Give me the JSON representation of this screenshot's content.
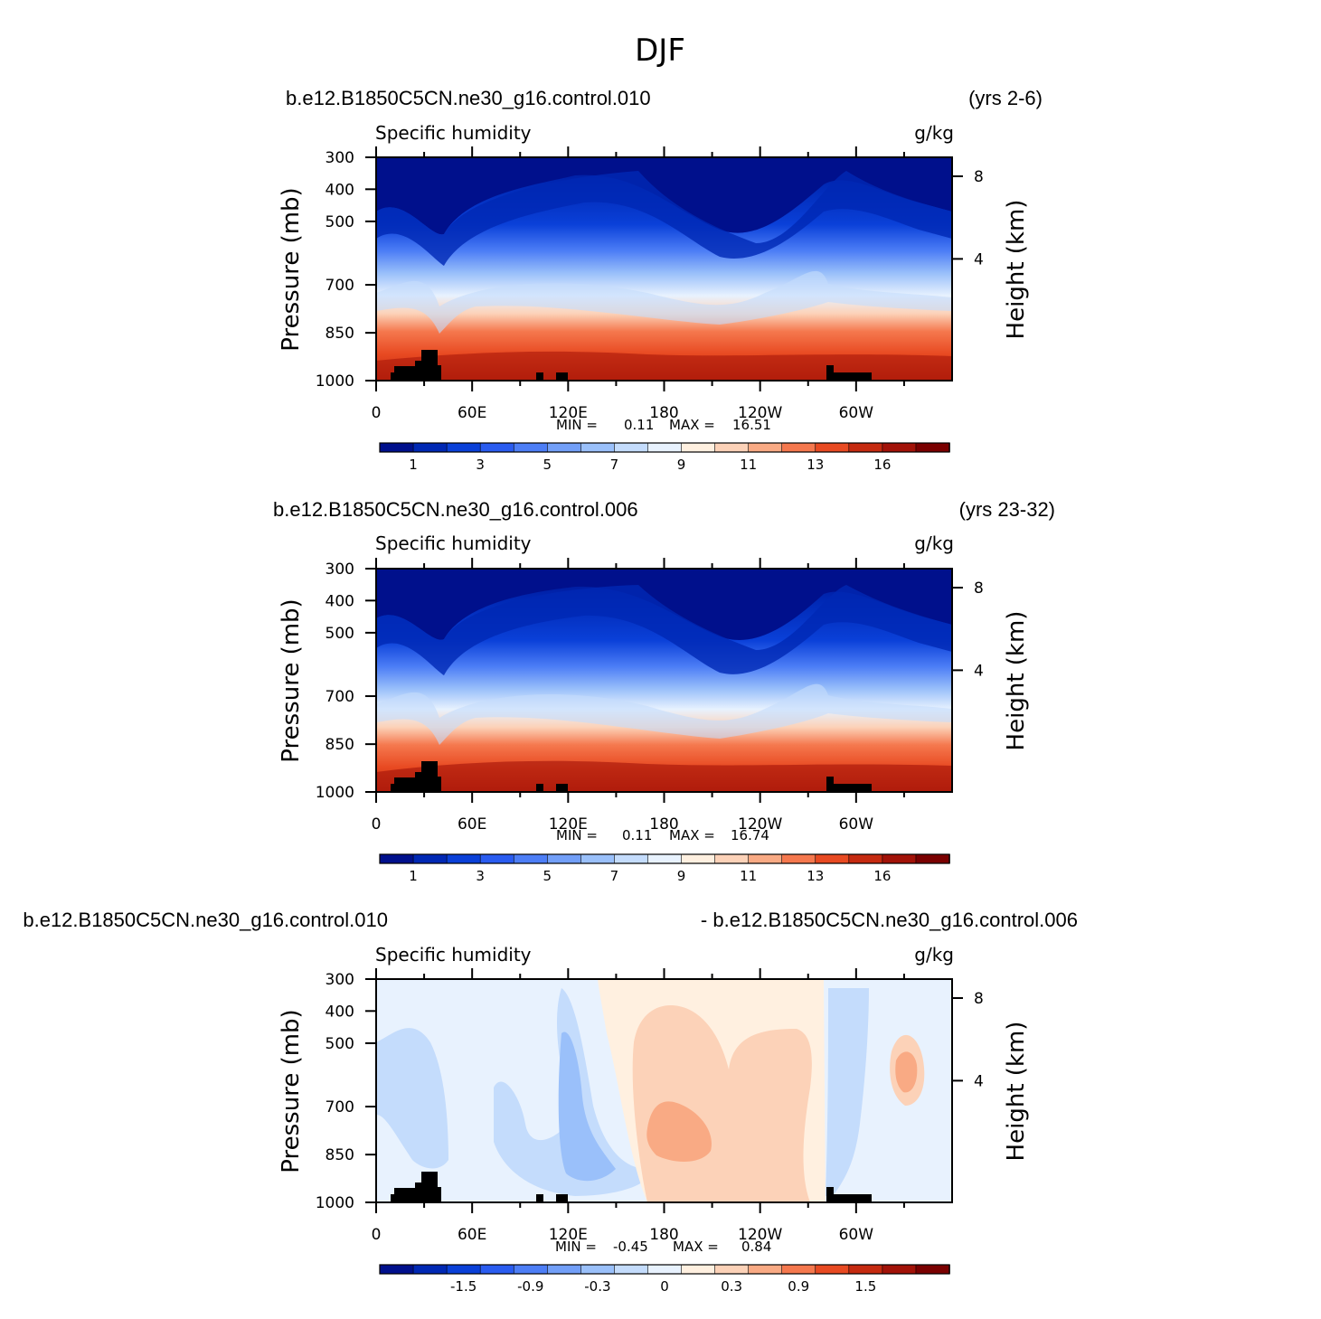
{
  "chart_data": {
    "title": "DJF",
    "panels": [
      {
        "type": "heatmap",
        "left_title": "b.e12.B1850C5CN.ne30_g16.control.010",
        "right_title": "(yrs 2-6)",
        "variable": "Specific humidity",
        "units": "g/kg",
        "ylabel": "Pressure (mb)",
        "ylabel_right": "Height (km)",
        "y_ticks": [
          "300",
          "400",
          "500",
          "700",
          "850",
          "1000"
        ],
        "y_right_ticks": [
          "8",
          "4"
        ],
        "x_ticks": [
          "0",
          "60E",
          "120E",
          "180",
          "120W",
          "60W"
        ],
        "min_label": "MIN =",
        "min_value": "0.11",
        "max_label": "MAX =",
        "max_value": "16.51",
        "colorbar_labels": [
          "1",
          "3",
          "5",
          "7",
          "9",
          "11",
          "13",
          "16"
        ],
        "colorbar_colors": [
          "#00108c",
          "#0028b4",
          "#0a40d8",
          "#2a5cf0",
          "#4d7ef6",
          "#729ff8",
          "#9ac0fa",
          "#c4dcfc",
          "#e8f2fe",
          "#fff0e0",
          "#fcd2b8",
          "#f9aa84",
          "#f5784e",
          "#e84a22",
          "#c52a10",
          "#a21208",
          "#7a0000"
        ],
        "kind": "absolute"
      },
      {
        "type": "heatmap",
        "left_title": "b.e12.B1850C5CN.ne30_g16.control.006",
        "right_title": "(yrs 23-32)",
        "variable": "Specific humidity",
        "units": "g/kg",
        "ylabel": "Pressure (mb)",
        "ylabel_right": "Height (km)",
        "y_ticks": [
          "300",
          "400",
          "500",
          "700",
          "850",
          "1000"
        ],
        "y_right_ticks": [
          "8",
          "4"
        ],
        "x_ticks": [
          "0",
          "60E",
          "120E",
          "180",
          "120W",
          "60W"
        ],
        "min_label": "MIN =",
        "min_value": "0.11",
        "max_label": "MAX =",
        "max_value": "16.74",
        "colorbar_labels": [
          "1",
          "3",
          "5",
          "7",
          "9",
          "11",
          "13",
          "16"
        ],
        "colorbar_colors": [
          "#00108c",
          "#0028b4",
          "#0a40d8",
          "#2a5cf0",
          "#4d7ef6",
          "#729ff8",
          "#9ac0fa",
          "#c4dcfc",
          "#e8f2fe",
          "#fff0e0",
          "#fcd2b8",
          "#f9aa84",
          "#f5784e",
          "#e84a22",
          "#c52a10",
          "#a21208",
          "#7a0000"
        ],
        "kind": "absolute"
      },
      {
        "type": "heatmap",
        "left_title": "b.e12.B1850C5CN.ne30_g16.control.010",
        "right_title": "- b.e12.B1850C5CN.ne30_g16.control.006",
        "variable": "Specific humidity",
        "units": "g/kg",
        "ylabel": "Pressure (mb)",
        "ylabel_right": "Height (km)",
        "y_ticks": [
          "300",
          "400",
          "500",
          "700",
          "850",
          "1000"
        ],
        "y_right_ticks": [
          "8",
          "4"
        ],
        "x_ticks": [
          "0",
          "60E",
          "120E",
          "180",
          "120W",
          "60W"
        ],
        "min_label": "MIN =",
        "min_value": "-0.45",
        "max_label": "MAX =",
        "max_value": "0.84",
        "colorbar_labels": [
          "-1.5",
          "-0.9",
          "-0.3",
          "0",
          "0.3",
          "0.9",
          "1.5"
        ],
        "colorbar_colors": [
          "#00108c",
          "#0028b4",
          "#0a40d8",
          "#2a5cf0",
          "#4d7ef6",
          "#729ff8",
          "#9ac0fa",
          "#c4dcfc",
          "#e8f2fe",
          "#fff0e0",
          "#fcd2b8",
          "#f9aa84",
          "#f5784e",
          "#e84a22",
          "#c52a10",
          "#a21208",
          "#7a0000"
        ],
        "kind": "difference"
      }
    ]
  }
}
